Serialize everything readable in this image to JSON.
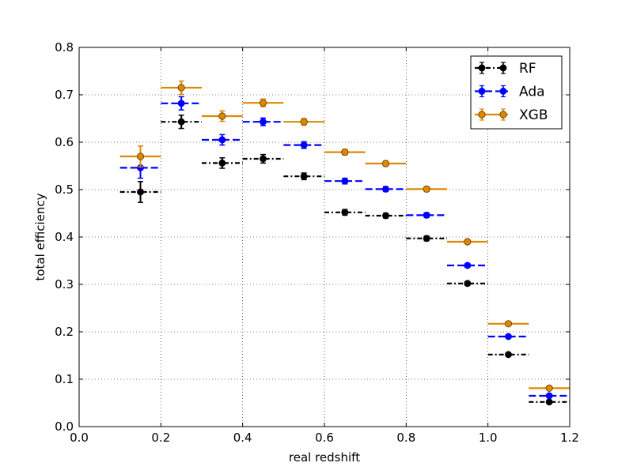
{
  "chart_data": {
    "type": "scatter",
    "title": "",
    "xlabel": "real redshift",
    "ylabel": "total efficiency",
    "xlim": [
      0.0,
      1.2
    ],
    "ylim": [
      0.0,
      0.8
    ],
    "xticks": [
      0.0,
      0.2,
      0.4,
      0.6,
      0.8,
      1.0,
      1.2
    ],
    "yticks": [
      0.0,
      0.1,
      0.2,
      0.3,
      0.4,
      0.5,
      0.6,
      0.7,
      0.8
    ],
    "xtick_labels": [
      "0.0",
      "0.2",
      "0.4",
      "0.6",
      "0.8",
      "1.0",
      "1.2"
    ],
    "ytick_labels": [
      "0.0",
      "0.1",
      "0.2",
      "0.3",
      "0.4",
      "0.5",
      "0.6",
      "0.7",
      "0.8"
    ],
    "grid": true,
    "legend_position": "top-right",
    "x_bin_halfwidth": 0.05,
    "x": [
      0.15,
      0.25,
      0.35,
      0.45,
      0.55,
      0.65,
      0.75,
      0.85,
      0.95,
      1.05,
      1.15
    ],
    "series": [
      {
        "name": "RF",
        "color": "#000000",
        "linestyle": "dashdot",
        "values": [
          0.495,
          0.643,
          0.556,
          0.565,
          0.528,
          0.452,
          0.445,
          0.397,
          0.302,
          0.152,
          0.052
        ],
        "yerr": [
          0.022,
          0.014,
          0.011,
          0.009,
          0.007,
          0.006,
          0.005,
          0.005,
          0.004,
          0.003,
          0.002
        ]
      },
      {
        "name": "Ada",
        "color": "#0000ff",
        "linestyle": "dashed",
        "values": [
          0.546,
          0.682,
          0.605,
          0.643,
          0.594,
          0.518,
          0.501,
          0.446,
          0.34,
          0.19,
          0.065
        ],
        "yerr": [
          0.022,
          0.014,
          0.011,
          0.008,
          0.007,
          0.006,
          0.005,
          0.005,
          0.004,
          0.003,
          0.002
        ]
      },
      {
        "name": "XGB",
        "color": "#dd8800",
        "linestyle": "solid",
        "values": [
          0.57,
          0.715,
          0.655,
          0.683,
          0.643,
          0.579,
          0.555,
          0.501,
          0.39,
          0.217,
          0.081
        ],
        "yerr": [
          0.022,
          0.014,
          0.011,
          0.008,
          0.007,
          0.006,
          0.005,
          0.005,
          0.004,
          0.003,
          0.002
        ]
      }
    ]
  }
}
